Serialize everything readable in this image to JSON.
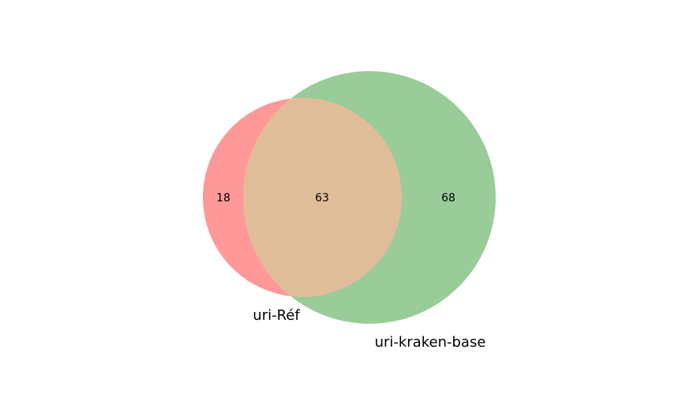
{
  "chart_data": {
    "type": "venn",
    "sets": [
      {
        "name": "uri-Réf",
        "color": "#ff9999"
      },
      {
        "name": "uri-kraken-base",
        "color": "#99cc99"
      }
    ],
    "regions": {
      "only_a": "18",
      "both": "63",
      "only_b": "68"
    },
    "intersection_color": "#e0bd99"
  }
}
